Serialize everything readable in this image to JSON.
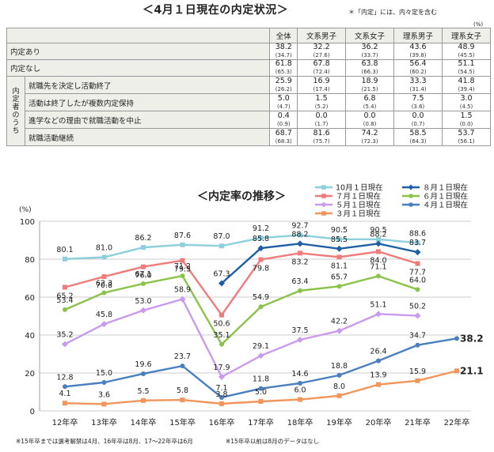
{
  "header": {
    "title": "＜4月１日現在の内定状況＞",
    "note": "＊「内定」には、内々定を含む",
    "unit": "(%)"
  },
  "table": {
    "columns": [
      "全体",
      "文系男子",
      "文系女子",
      "理系男子",
      "理系女子"
    ],
    "side_label": [
      "内",
      "定",
      "者",
      "の",
      "う",
      "ち"
    ],
    "rows": [
      {
        "label": "内定あり",
        "values": [
          "38.2",
          "32.2",
          "36.2",
          "43.6",
          "48.9"
        ],
        "prev": [
          "(34.7)",
          "(27.6)",
          "(33.7)",
          "(39.8)",
          "(45.5)"
        ],
        "sub": false
      },
      {
        "label": "内定なし",
        "values": [
          "61.8",
          "67.8",
          "63.8",
          "56.4",
          "51.1"
        ],
        "prev": [
          "(65.3)",
          "(72.4)",
          "(66.3)",
          "(60.2)",
          "(54.5)"
        ],
        "sub": false
      },
      {
        "label": "就職先を決定し活動終了",
        "values": [
          "25.9",
          "16.9",
          "18.9",
          "33.3",
          "41.8"
        ],
        "prev": [
          "(26.2)",
          "(17.4)",
          "(21.5)",
          "(31.4)",
          "(39.4)"
        ],
        "sub": true
      },
      {
        "label": "活動は終了したが複数内定保持",
        "values": [
          "5.0",
          "1.5",
          "6.8",
          "7.5",
          "3.0"
        ],
        "prev": [
          "(4.7)",
          "(5.2)",
          "(5.4)",
          "(3.6)",
          "(4.5)"
        ],
        "sub": true
      },
      {
        "label": "進学などの理由で就職活動を中止",
        "values": [
          "0.4",
          "0.0",
          "0.0",
          "0.0",
          "1.5"
        ],
        "prev": [
          "(0.9)",
          "(1.7)",
          "(0.8)",
          "(0.7)",
          "(0.0)"
        ],
        "sub": true
      },
      {
        "label": "就職活動継続",
        "values": [
          "68.7",
          "81.6",
          "74.2",
          "58.5",
          "53.7"
        ],
        "prev": [
          "(68.3)",
          "(75.7)",
          "(72.3)",
          "(64.3)",
          "(56.1)"
        ],
        "sub": true
      }
    ]
  },
  "chart_data": {
    "type": "line",
    "title": "＜内定率の推移＞",
    "ylabel": "(%)",
    "ylim": [
      0,
      100
    ],
    "yticks": [
      "0",
      "20",
      "40",
      "60",
      "80",
      "100"
    ],
    "categories": [
      "12年卒",
      "13年卒",
      "14年卒",
      "15年卒",
      "16年卒",
      "17年卒",
      "18年卒",
      "19年卒",
      "20年卒",
      "21年卒",
      "22年卒"
    ],
    "grid": true,
    "legend_placement": "top-right",
    "series": [
      {
        "name": "10月１日現在",
        "color": "#8ecfdc",
        "marker": "square",
        "values": [
          80.1,
          81.0,
          86.2,
          87.6,
          87.0,
          91.2,
          92.7,
          90.5,
          90.5,
          88.6,
          null
        ],
        "labels": [
          "80.1",
          "81.0",
          "86.2",
          "87.6",
          "87.0",
          "91.2",
          "92.7",
          "90.5",
          "90.5",
          "88.6",
          null
        ]
      },
      {
        "name": "８月１日現在",
        "color": "#1f5fa6",
        "marker": "diamond",
        "values": [
          null,
          null,
          null,
          null,
          67.3,
          85.8,
          88.2,
          85.5,
          88.2,
          83.7,
          null
        ],
        "labels": [
          null,
          null,
          null,
          null,
          "67.3",
          "85.8",
          "88.2",
          "85.5",
          "88.2",
          "83.7",
          null
        ]
      },
      {
        "name": "７月１日現在",
        "color": "#ef7b7b",
        "marker": "square",
        "values": [
          65.2,
          70.8,
          76.0,
          79.3,
          50.6,
          79.8,
          83.2,
          81.1,
          84.0,
          77.7,
          null
        ],
        "labels": [
          "65.2",
          "70.8",
          "76.0",
          "79.3",
          "50.6",
          "79.8",
          "83.2",
          "81.1",
          "84.0",
          "77.7",
          null
        ]
      },
      {
        "name": "６月１日現在",
        "color": "#8bc34a",
        "marker": "circle",
        "values": [
          53.4,
          62.3,
          67.1,
          71.2,
          35.1,
          54.9,
          63.4,
          65.7,
          71.1,
          64.0,
          null
        ],
        "labels": [
          "53.4",
          "62.3",
          "67.1",
          "71.2",
          "35.1",
          "54.9",
          "63.4",
          "65.7",
          "71.1",
          "64.0",
          null
        ]
      },
      {
        "name": "５月１日現在",
        "color": "#c99bec",
        "marker": "diamond",
        "values": [
          35.2,
          45.8,
          53.0,
          58.9,
          17.9,
          29.1,
          37.5,
          42.2,
          51.1,
          50.2,
          null
        ],
        "labels": [
          "35.2",
          "45.8",
          "53.0",
          "58.9",
          "17.9",
          "29.1",
          "37.5",
          "42.2",
          "51.1",
          "50.2",
          null
        ]
      },
      {
        "name": "４月１日現在",
        "color": "#4a7fbf",
        "marker": "circle",
        "values": [
          12.8,
          15.0,
          19.6,
          23.7,
          7.1,
          11.8,
          14.6,
          18.8,
          26.4,
          34.7,
          38.2
        ],
        "labels": [
          "12.8",
          "15.0",
          "19.6",
          "23.7",
          "7.1",
          "11.8",
          "14.6",
          "18.8",
          "26.4",
          "34.7",
          "38.2"
        ]
      },
      {
        "name": "３月１日現在",
        "color": "#f2955a",
        "marker": "square",
        "values": [
          4.1,
          3.6,
          5.5,
          5.8,
          3.8,
          5.0,
          6.0,
          8.0,
          13.9,
          15.9,
          21.1
        ],
        "labels": [
          "4.1",
          "3.6",
          "5.5",
          "5.8",
          "3.8",
          "5.0",
          "6.0",
          "8.0",
          "13.9",
          "15.9",
          "21.1"
        ]
      }
    ]
  },
  "footnotes": {
    "left": "※15年卒までは選考解禁は4月、16年卒は8月、17～22年卒は6月",
    "right": "※15年卒以前は8月のデータはなし"
  }
}
